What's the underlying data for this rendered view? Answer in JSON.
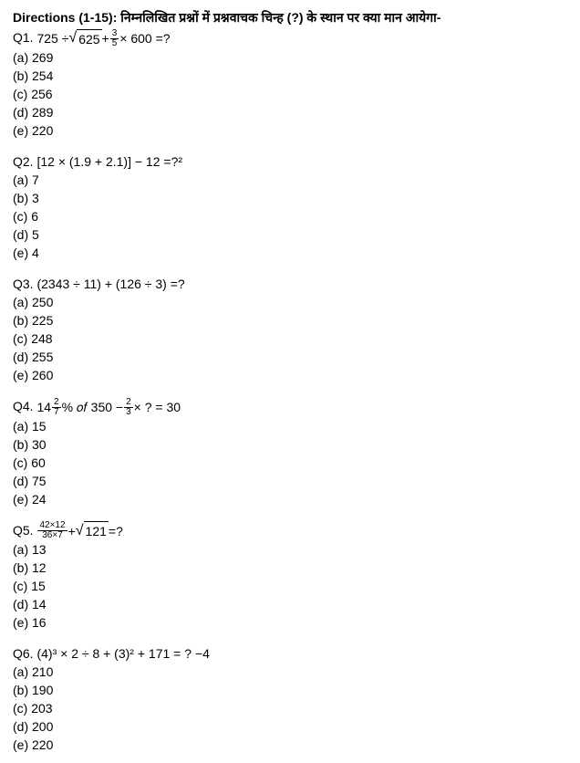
{
  "directions_label": "Directions (1-15):",
  "directions_text": "निम्नलिखित प्रश्नों में प्रश्नवाचक चिन्ह (?) के स्थान पर क्या मान आयेगा-",
  "questions": [
    {
      "id": "Q1.",
      "expr_parts": {
        "p1": "725 ÷ ",
        "sqrt1": "625",
        "p2": "  + ",
        "frac_num": "3",
        "frac_den": "5",
        "p3": " ×  600 =?"
      },
      "opts": [
        "(a) 269",
        "(b) 254",
        "(c) 256",
        "(d) 289",
        "(e) 220"
      ]
    },
    {
      "id": "Q2.",
      "expr_parts": {
        "full": " [12 × (1.9 + 2.1)] − 12  =?²"
      },
      "opts": [
        "(a) 7",
        "(b) 3",
        "(c) 6",
        "(d) 5",
        "(e) 4"
      ]
    },
    {
      "id": "Q3.",
      "expr_parts": {
        "full": " (2343 ÷ 11) + (126 ÷ 3)  =?"
      },
      "opts": [
        "(a) 250",
        "(b) 225",
        "(c) 248",
        "(d) 255",
        "(e) 260"
      ]
    },
    {
      "id": "Q4.",
      "expr_parts": {
        "whole1": "14",
        "f1n": "2",
        "f1d": "7",
        "mid": "% 𝑜𝑓 350 − ",
        "f2n": "2",
        "f2d": "3",
        "tail": " × ? = 30"
      },
      "opts": [
        "(a) 15",
        "(b) 30",
        "(c) 60",
        "(d) 75",
        "(e) 24"
      ]
    },
    {
      "id": "Q5.",
      "expr_parts": {
        "fnum": "42×12",
        "fden": "36×7",
        "mid": " + ",
        "sqrt": "121",
        "tail": "  =?"
      },
      "opts": [
        "(a) 13",
        "(b) 12",
        "(c) 15",
        "(d) 14",
        "(e) 16"
      ]
    },
    {
      "id": "Q6.",
      "expr_parts": {
        "full": "    (4)³ × 2 ÷ 8 + (3)² + 171 = ?  −4"
      },
      "opts": [
        "(a) 210",
        "(b) 190",
        "(c) 203",
        "(d) 200",
        "(e) 220"
      ]
    }
  ]
}
